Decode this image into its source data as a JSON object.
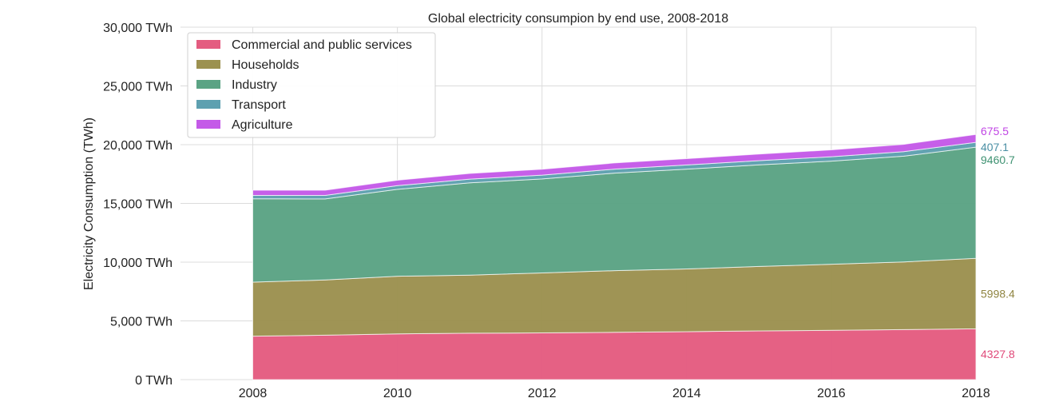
{
  "chart_data": {
    "type": "area",
    "stacked": true,
    "title": "Global electricity consumpion by end use, 2008-2018",
    "xlabel": "",
    "ylabel": "Electricity Consumption (TWh)",
    "x": [
      2008,
      2009,
      2010,
      2011,
      2012,
      2013,
      2014,
      2015,
      2016,
      2017,
      2018
    ],
    "xlim": [
      2007,
      2018
    ],
    "ylim": [
      0,
      30000
    ],
    "xticks": [
      "2008",
      "2010",
      "2012",
      "2014",
      "2016",
      "2018"
    ],
    "yticks": [
      "0 TWh",
      "5,000 TWh",
      "10,000 TWh",
      "15,000 TWh",
      "20,000 TWh",
      "25,000 TWh",
      "30,000 TWh"
    ],
    "grid": true,
    "legend_position": "top-left",
    "series": [
      {
        "name": "Commercial and public services",
        "color": "#e45c80",
        "values": [
          3700,
          3780,
          3900,
          3950,
          3980,
          4030,
          4080,
          4150,
          4200,
          4260,
          4327.8
        ]
      },
      {
        "name": "Households",
        "color": "#9c9150",
        "values": [
          4600,
          4700,
          4900,
          4950,
          5100,
          5250,
          5340,
          5480,
          5620,
          5760,
          5998.4
        ]
      },
      {
        "name": "Industry",
        "color": "#5ba384",
        "values": [
          7100,
          6900,
          7400,
          7850,
          8000,
          8300,
          8500,
          8650,
          8780,
          9000,
          9460.7
        ]
      },
      {
        "name": "Transport",
        "color": "#5ea0b0",
        "values": [
          290,
          300,
          310,
          320,
          330,
          340,
          350,
          360,
          370,
          385,
          407.1
        ]
      },
      {
        "name": "Agriculture",
        "color": "#c45ae8",
        "values": [
          430,
          440,
          460,
          480,
          500,
          520,
          540,
          560,
          590,
          620,
          675.5
        ]
      }
    ],
    "end_labels": [
      "4327.8",
      "5998.4",
      "9460.7",
      "407.1",
      "675.5"
    ],
    "end_label_colors": [
      "#e04a7a",
      "#8f8440",
      "#3f9272",
      "#4a8fa4",
      "#c045e4"
    ]
  }
}
